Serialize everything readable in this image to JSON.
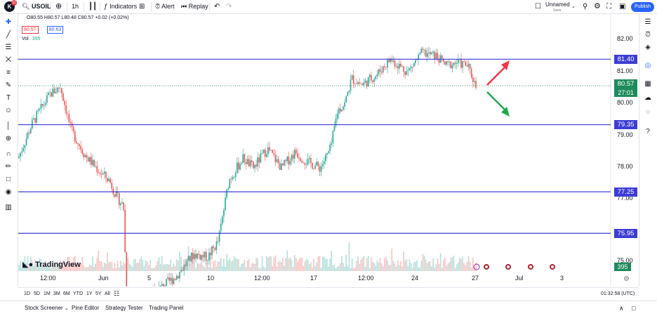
{
  "topbar": {
    "logo": "K",
    "logo_badge": "11",
    "symbol": "USOIL",
    "interval": "1h",
    "indicators": "Indicators",
    "alert": "Alert",
    "replay": "Replay",
    "layout_name": "Unnamed",
    "layout_status": "Save",
    "publish": "Publish"
  },
  "legend": {
    "ohlc": "O80.55 H80.57 L80.48 C80.57 +0.02 (+0.02%)",
    "bid": "80.57",
    "ask": "80.63",
    "vol_label": "Vol",
    "vol_value": "395"
  },
  "price_axis": {
    "ticks": [
      "82.00",
      "81.00",
      "80.00",
      "79.00",
      "78.00",
      "77.00",
      "75.00"
    ],
    "current_price": "80.57",
    "countdown": "27:01",
    "volume_label": "395"
  },
  "levels": [
    {
      "label": "81.40",
      "value": 81.4
    },
    {
      "label": "79.35",
      "value": 79.35
    },
    {
      "label": "77.25",
      "value": 77.25
    },
    {
      "label": "75.95",
      "value": 75.95
    }
  ],
  "time_axis": {
    "ticks": [
      "12:00",
      "Jun",
      "5",
      "10",
      "12:00",
      "17",
      "12:00",
      "24",
      "27",
      "Jul",
      "3"
    ],
    "clock": "01:32:58 (UTC)"
  },
  "ranges": [
    "1D",
    "5D",
    "1M",
    "3M",
    "6M",
    "YTD",
    "1Y",
    "5Y",
    "All"
  ],
  "watermark": "TradingView",
  "footer": {
    "stock_screener": "Stock Screener",
    "pine_editor": "Pine Editor",
    "strategy_tester": "Strategy Tester",
    "trading_panel": "Trading Panel"
  },
  "colors": {
    "up": "#26a69a",
    "down": "#ef5350",
    "level_line": "#3d3dd4",
    "current_price_bg": "#1e8b5a",
    "arrow_up": "#f23645",
    "arrow_down": "#20a84f"
  },
  "chart_data": {
    "type": "candlestick",
    "symbol": "USOIL",
    "interval": "1h",
    "ylim": [
      74.6,
      82.6
    ],
    "path": [
      [
        0,
        78.3
      ],
      [
        20,
        79.4
      ],
      [
        45,
        80.3
      ],
      [
        60,
        80.55
      ],
      [
        75,
        79.2
      ],
      [
        95,
        78.4
      ],
      [
        115,
        77.9
      ],
      [
        130,
        77.6
      ],
      [
        140,
        77.1
      ],
      [
        150,
        76.8
      ],
      [
        155,
        73.5
      ],
      [
        225,
        74.6
      ],
      [
        250,
        75.3
      ],
      [
        270,
        75.2
      ],
      [
        285,
        75.7
      ],
      [
        300,
        77.6
      ],
      [
        320,
        78.3
      ],
      [
        335,
        78.0
      ],
      [
        355,
        78.6
      ],
      [
        375,
        78.0
      ],
      [
        395,
        78.5
      ],
      [
        410,
        78.2
      ],
      [
        430,
        78.0
      ],
      [
        445,
        78.6
      ],
      [
        455,
        79.8
      ],
      [
        465,
        80.0
      ],
      [
        475,
        80.8
      ],
      [
        490,
        80.6
      ],
      [
        510,
        80.9
      ],
      [
        530,
        81.4
      ],
      [
        555,
        81.0
      ],
      [
        575,
        81.6
      ],
      [
        595,
        81.5
      ],
      [
        610,
        81.2
      ],
      [
        625,
        81.3
      ],
      [
        640,
        81.2
      ],
      [
        655,
        80.4
      ]
    ],
    "volume_max": 1
  }
}
